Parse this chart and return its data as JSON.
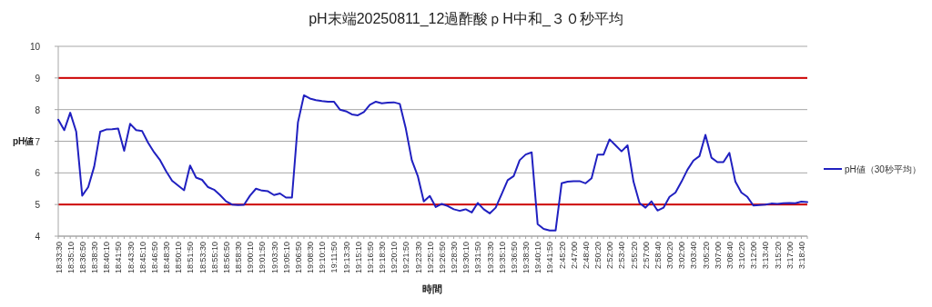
{
  "chart_data": {
    "type": "line",
    "title": "pH末端20250811_12過酢酸ｐH中和_３０秒平均",
    "xlabel": "時間",
    "ylabel": "pH値",
    "categories": [
      "18:33:30",
      null,
      "18:35:10",
      null,
      "18:36:50",
      null,
      "18:38:30",
      null,
      "18:40:10",
      null,
      "18:41:50",
      null,
      "18:43:30",
      null,
      "18:45:10",
      null,
      "18:46:50",
      null,
      "18:48:30",
      null,
      "18:50:10",
      null,
      "18:51:50",
      null,
      "18:53:30",
      null,
      "18:55:10",
      null,
      "18:56:50",
      null,
      "18:58:30",
      null,
      "19:00:10",
      null,
      "19:01:50",
      null,
      "19:03:30",
      null,
      "19:05:10",
      null,
      "19:06:50",
      null,
      "19:08:30",
      null,
      "19:10:10",
      null,
      "19:11:50",
      null,
      "19:13:30",
      null,
      "19:15:10",
      null,
      "19:16:50",
      null,
      "19:18:30",
      null,
      "19:20:10",
      null,
      "19:21:50",
      null,
      "19:23:30",
      null,
      "19:25:10",
      null,
      "19:26:50",
      null,
      "19:28:30",
      null,
      "19:30:10",
      null,
      "19:31:50",
      null,
      "19:33:30",
      null,
      "19:35:10",
      null,
      "19:36:50",
      null,
      "19:38:30",
      null,
      "19:40:10",
      null,
      "19:41:50",
      null,
      "2:45:20",
      null,
      "2:47:00",
      null,
      "2:48:40",
      null,
      "2:50:20",
      null,
      "2:52:00",
      null,
      "2:53:40",
      null,
      "2:55:20",
      null,
      "2:57:00",
      null,
      "2:58:40",
      null,
      "3:00:20",
      null,
      "3:02:00",
      null,
      "3:03:40",
      null,
      "3:05:20",
      null,
      "3:07:00",
      null,
      "3:08:40",
      null,
      "3:10:20",
      null,
      "3:12:00",
      null,
      "3:13:40",
      null,
      "3:15:20",
      null,
      "3:17:00",
      null,
      "3:18:40",
      null
    ],
    "series": [
      {
        "name": "pH値（30秒平均）",
        "color": "#2020c0",
        "values": [
          7.68,
          7.35,
          7.9,
          7.3,
          5.28,
          5.55,
          6.2,
          7.3,
          7.37,
          7.38,
          7.4,
          6.7,
          7.55,
          7.35,
          7.32,
          6.95,
          6.65,
          6.4,
          6.05,
          5.75,
          5.6,
          5.45,
          6.23,
          5.85,
          5.78,
          5.55,
          5.47,
          5.3,
          5.1,
          5.0,
          4.98,
          4.99,
          5.28,
          5.5,
          5.44,
          5.42,
          5.3,
          5.35,
          5.22,
          5.22,
          7.6,
          8.45,
          8.35,
          8.3,
          8.27,
          8.25,
          8.25,
          8.0,
          7.95,
          7.85,
          7.82,
          7.92,
          8.15,
          8.25,
          8.2,
          8.22,
          8.23,
          8.18,
          7.4,
          6.4,
          5.9,
          5.1,
          5.27,
          4.92,
          5.02,
          4.95,
          4.85,
          4.8,
          4.85,
          4.75,
          5.05,
          4.85,
          4.72,
          4.9,
          5.33,
          5.77,
          5.9,
          6.4,
          6.58,
          6.65,
          4.38,
          4.23,
          4.18,
          4.18,
          5.67,
          5.72,
          5.74,
          5.74,
          5.67,
          5.83,
          6.58,
          6.58,
          7.06,
          6.87,
          6.68,
          6.87,
          5.72,
          5.05,
          4.9,
          5.1,
          4.81,
          4.9,
          5.24,
          5.38,
          5.72,
          6.1,
          6.39,
          6.53,
          7.2,
          6.48,
          6.34,
          6.34,
          6.63,
          5.72,
          5.38,
          5.24,
          4.97,
          4.98,
          5.0,
          5.03,
          5.02,
          5.04,
          5.05,
          5.04,
          5.09,
          5.08
        ]
      }
    ],
    "ylim": [
      4,
      10
    ],
    "yticks": [
      4,
      5,
      6,
      7,
      8,
      9,
      10
    ],
    "grid": "y",
    "legend": "right",
    "ref_lines": [
      {
        "axis": "y",
        "value": 9,
        "label": null,
        "color": "#cc0000"
      },
      {
        "axis": "y",
        "value": 5,
        "label": null,
        "color": "#cc0000"
      }
    ]
  }
}
